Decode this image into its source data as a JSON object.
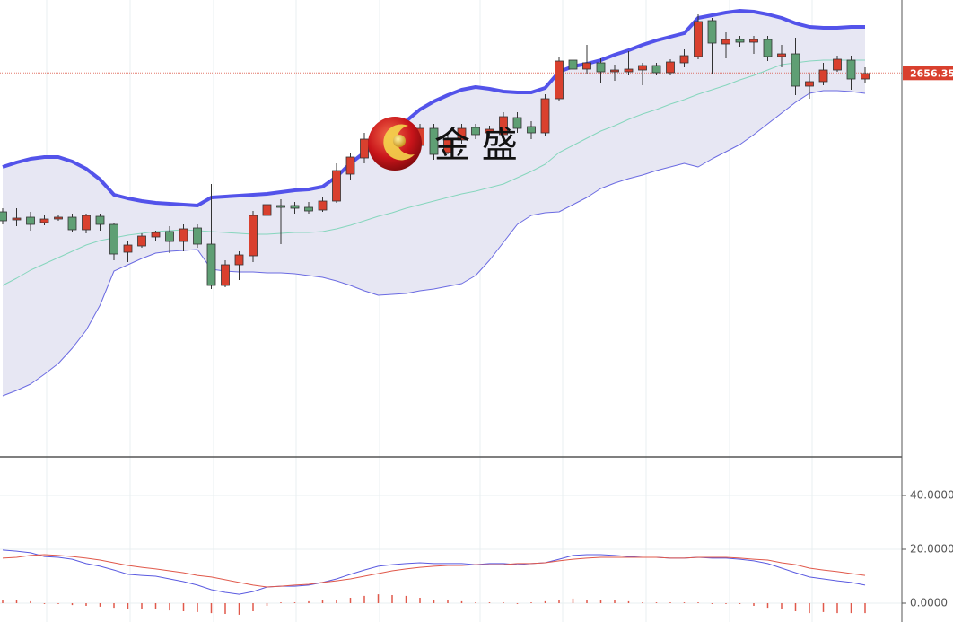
{
  "chart_data": [
    {
      "type": "candlestick",
      "ylim": [
        2443,
        2697
      ],
      "up_color": "#d9402e",
      "down_color": "#5f9f74",
      "open": [
        2579,
        2574.5,
        2576,
        2573,
        2575,
        2576,
        2569,
        2576.5,
        2572,
        2556.5,
        2560,
        2565,
        2568,
        2562.5,
        2570,
        2561,
        2538,
        2549.5,
        2554.5,
        2577,
        2582.5,
        2582.5,
        2581.5,
        2580,
        2585,
        2600,
        2609,
        2617,
        2624.5,
        2622,
        2616,
        2625.5,
        2612,
        2619,
        2626,
        2623,
        2622,
        2631.5,
        2626.5,
        2623,
        2642,
        2663.5,
        2658.5,
        2662,
        2657,
        2657,
        2658,
        2660.5,
        2656.5,
        2662,
        2665.5,
        2685.5,
        2672.5,
        2675,
        2673.5,
        2675,
        2665.5,
        2667,
        2649,
        2651.5,
        2658,
        2663.5,
        2653
      ],
      "high": [
        2581,
        2581,
        2579,
        2577,
        2577,
        2578,
        2578,
        2578,
        2573,
        2563,
        2567,
        2568.5,
        2571,
        2572,
        2572,
        2594.5,
        2552,
        2557,
        2579.5,
        2587,
        2586,
        2584.5,
        2584.5,
        2587,
        2606,
        2612,
        2623,
        2627,
        2628,
        2627,
        2628,
        2628,
        2623,
        2628,
        2628,
        2627,
        2634.5,
        2634.5,
        2629.5,
        2644.5,
        2665,
        2666,
        2672,
        2664.5,
        2661,
        2668.5,
        2662,
        2662,
        2664,
        2669.5,
        2689,
        2687,
        2679,
        2677,
        2677,
        2677,
        2672,
        2676,
        2656,
        2662,
        2666,
        2666,
        2659.5
      ],
      "low": [
        2572,
        2571,
        2568.5,
        2571.5,
        2574,
        2568,
        2567,
        2568.5,
        2552,
        2551,
        2559,
        2563,
        2556,
        2557,
        2559,
        2536,
        2537,
        2541,
        2551,
        2575,
        2561,
        2578,
        2578,
        2579,
        2584,
        2597,
        2606,
        2614.5,
        2616,
        2614.5,
        2614.5,
        2608,
        2611,
        2617,
        2619.5,
        2621,
        2619.5,
        2623,
        2619.5,
        2621,
        2641,
        2656,
        2656,
        2651,
        2652,
        2655,
        2649.5,
        2655,
        2655,
        2659.5,
        2664,
        2655.5,
        2664.5,
        2671,
        2667,
        2663,
        2659.5,
        2644,
        2642,
        2649.5,
        2657,
        2647,
        2651
      ],
      "close": [
        2574,
        2575.5,
        2572,
        2575,
        2576,
        2569,
        2577,
        2572,
        2555.5,
        2560.5,
        2565.5,
        2567.5,
        2562.5,
        2569.5,
        2561,
        2538,
        2549.5,
        2555,
        2577,
        2583,
        2581.5,
        2581,
        2579.5,
        2585,
        2602,
        2609.5,
        2619.5,
        2624.5,
        2618,
        2617,
        2625.5,
        2611,
        2619.5,
        2625.5,
        2622,
        2625,
        2632,
        2625.5,
        2623,
        2642,
        2663,
        2658.5,
        2662,
        2657,
        2658,
        2658.5,
        2660.5,
        2656.5,
        2662.5,
        2666,
        2685,
        2673,
        2675,
        2673.5,
        2675,
        2665.5,
        2667,
        2649,
        2651.5,
        2658,
        2664,
        2653,
        2656
      ],
      "band_fill": "#e7e7f3",
      "bands": [
        {
          "color": "#5353ea",
          "values": [
            2604,
            2606.5,
            2608.5,
            2609.5,
            2609.5,
            2607,
            2603,
            2597,
            2588.5,
            2586.5,
            2585,
            2584,
            2583.5,
            2583,
            2582.5,
            2587,
            2587.5,
            2588,
            2588.5,
            2589,
            2590,
            2591,
            2591.5,
            2593,
            2598.5,
            2606,
            2612,
            2617,
            2622,
            2629.5,
            2636,
            2640.5,
            2644,
            2647,
            2648.5,
            2647.5,
            2646,
            2645.5,
            2645.5,
            2648,
            2657,
            2660,
            2661.5,
            2663.5,
            2666.5,
            2669,
            2672,
            2674.5,
            2676.5,
            2678.5,
            2687,
            2688.5,
            2690,
            2691,
            2690.5,
            2689,
            2687,
            2684,
            2682,
            2681.5,
            2681.5,
            2682,
            2682
          ]
        },
        {
          "color": "#86d6bd",
          "values": [
            2538,
            2542,
            2546.5,
            2550,
            2553.5,
            2557,
            2560.5,
            2563,
            2564.5,
            2566,
            2567,
            2568,
            2568.5,
            2569,
            2568.5,
            2568,
            2567.5,
            2567,
            2566.5,
            2566.5,
            2567,
            2567.5,
            2567.5,
            2568,
            2569.5,
            2571.5,
            2574,
            2576.5,
            2578.5,
            2581,
            2583,
            2585,
            2587,
            2589,
            2590.5,
            2592.5,
            2594.5,
            2598,
            2601.5,
            2605.5,
            2612,
            2616,
            2620,
            2624,
            2627,
            2630.5,
            2633.5,
            2636,
            2639,
            2641.5,
            2644.5,
            2647,
            2649.5,
            2652.5,
            2655,
            2658,
            2661,
            2662,
            2663,
            2663.5,
            2663.5,
            2663.5,
            2663.5
          ]
        },
        {
          "color": "#6b6be2",
          "values": [
            2476.5,
            2479.5,
            2483,
            2488.5,
            2494.5,
            2503,
            2513,
            2527,
            2546,
            2549.5,
            2553,
            2556,
            2557,
            2557.5,
            2558,
            2547,
            2546,
            2545.5,
            2545.5,
            2545,
            2545,
            2544.5,
            2543.5,
            2542.5,
            2540.5,
            2538,
            2535,
            2532.5,
            2533,
            2533.5,
            2535,
            2536,
            2537.5,
            2539,
            2543.5,
            2552,
            2562,
            2572,
            2577,
            2578.5,
            2579,
            2583,
            2587,
            2592,
            2595,
            2597.5,
            2599.5,
            2602,
            2604,
            2606,
            2604,
            2608.5,
            2612.5,
            2616.5,
            2622,
            2628,
            2634,
            2640,
            2645,
            2646.5,
            2646.5,
            2646,
            2645
          ]
        }
      ],
      "last_price": {
        "value": 2656.35,
        "label": "2656.350"
      },
      "last_price_color": "#d9402e",
      "watermark": "金 盛"
    },
    {
      "type": "line",
      "ylim": [
        -7,
        54
      ],
      "yticks": [
        {
          "value": 0,
          "label": "0.0000"
        },
        {
          "value": 20,
          "label": "20.0000"
        },
        {
          "value": 40,
          "label": "40.0000"
        }
      ],
      "grid": true,
      "series": [
        {
          "type": "line",
          "color": "#5a5ae0",
          "values": [
            19.7,
            19.3,
            18.7,
            17.3,
            17,
            16.3,
            14.7,
            13.7,
            12.3,
            10.7,
            10.3,
            10,
            9,
            8,
            6.7,
            5,
            4,
            3.3,
            4.3,
            6,
            6.3,
            6.3,
            6.7,
            7.7,
            9,
            10.7,
            12.3,
            13.7,
            14.3,
            14.7,
            15,
            14.7,
            14.7,
            14.7,
            14.3,
            14.7,
            14.7,
            14.3,
            14.7,
            15,
            16.3,
            17.7,
            18,
            18,
            17.7,
            17.3,
            17,
            17,
            16.7,
            16.7,
            17,
            16.7,
            16.7,
            16.3,
            15.7,
            14.7,
            13,
            11.3,
            9.7,
            9,
            8.3,
            7.7,
            6.7
          ]
        },
        {
          "type": "line",
          "color": "#e0584a",
          "values": [
            16.7,
            17,
            17.7,
            18,
            17.7,
            17.3,
            16.7,
            16,
            15,
            14,
            13.3,
            12.7,
            12,
            11.3,
            10.3,
            9.7,
            8.7,
            7.7,
            6.7,
            6,
            6.3,
            6.7,
            7,
            7.7,
            8.3,
            9,
            10,
            11,
            12,
            12.7,
            13.3,
            13.7,
            14,
            14,
            14.3,
            14.3,
            14.3,
            14.7,
            14.7,
            15,
            15.7,
            16.3,
            16.7,
            17,
            17,
            17,
            17,
            17,
            16.7,
            16.7,
            17,
            17,
            17,
            16.7,
            16.3,
            16,
            15,
            14.3,
            13,
            12.3,
            11.7,
            11,
            10.3
          ]
        },
        {
          "type": "bar",
          "color": "#e0584a",
          "values": [
            1.3,
            1,
            0.7,
            -0.3,
            -0.3,
            -0.7,
            -1,
            -1.3,
            -1.7,
            -2,
            -2.3,
            -2.3,
            -2.7,
            -3,
            -3.3,
            -3.7,
            -4,
            -4.3,
            -3,
            -1,
            0.3,
            0.3,
            0.7,
            1,
            1.3,
            2,
            2.7,
            3.3,
            3,
            2.7,
            2,
            1.3,
            1,
            0.7,
            0.3,
            0.3,
            0.3,
            -0.3,
            0.3,
            0.7,
            1.3,
            1.7,
            1.3,
            1,
            1,
            0.7,
            0.3,
            0.3,
            0.3,
            0.3,
            0.3,
            -0.3,
            -0.3,
            -0.3,
            -1,
            -1.7,
            -2.3,
            -3,
            -3.7,
            -3.3,
            -3.7,
            -3.7,
            -3.7
          ]
        }
      ]
    }
  ]
}
